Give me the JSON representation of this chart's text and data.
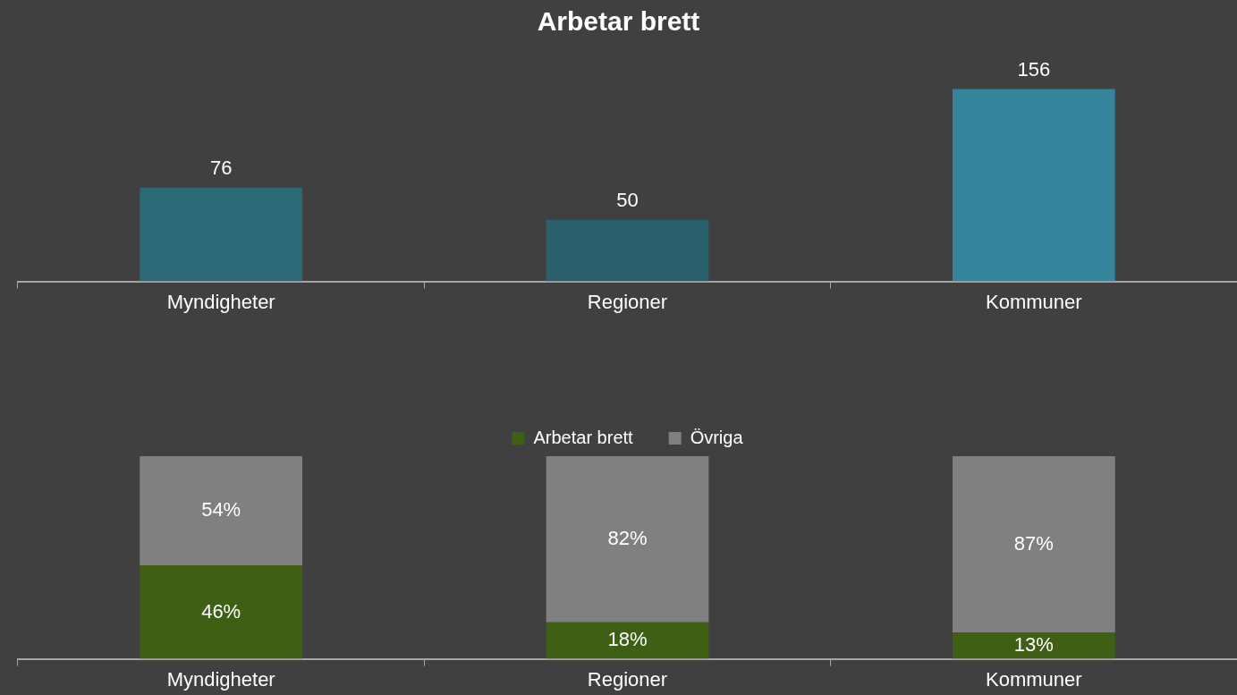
{
  "chart_data": [
    {
      "type": "bar",
      "title": "Arbetar brett",
      "categories": [
        "Myndigheter",
        "Regioner",
        "Kommuner"
      ],
      "values": [
        76,
        50,
        156
      ],
      "colors": [
        "#2c6876",
        "#2a5f6c",
        "#34859c"
      ],
      "data_labels": true
    },
    {
      "type": "bar",
      "stacked": true,
      "categories": [
        "Myndigheter",
        "Regioner",
        "Kommuner"
      ],
      "series": [
        {
          "name": "Arbetar brett",
          "color": "#3f5f14",
          "values": [
            46,
            18,
            13
          ],
          "value_labels": [
            "46%",
            "18%",
            "13%"
          ]
        },
        {
          "name": "Övriga",
          "color": "#808080",
          "values": [
            54,
            82,
            87
          ],
          "value_labels": [
            "54%",
            "82%",
            "87%"
          ]
        }
      ],
      "legend": "top"
    }
  ]
}
